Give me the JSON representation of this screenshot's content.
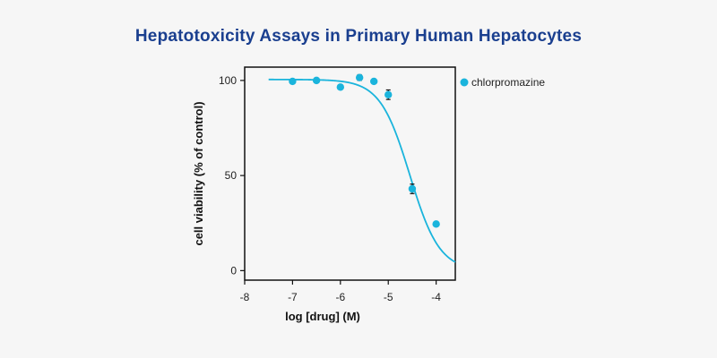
{
  "chart_data": {
    "type": "scatter",
    "title": "Hepatotoxicity Assays in Primary Human Hepatocytes",
    "xlabel": "log [drug] (M)",
    "ylabel": "cell viability (% of control)",
    "xlim": [
      -8,
      -3.6
    ],
    "ylim": [
      -5,
      107
    ],
    "x_ticks": [
      -8,
      -7,
      -6,
      -5,
      -4
    ],
    "y_ticks": [
      0,
      50,
      100
    ],
    "grid": false,
    "legend_position": "right",
    "series": [
      {
        "name": "chlorpromazine",
        "color": "#1ab4dc",
        "points": [
          {
            "x": -7.0,
            "y": 99.5
          },
          {
            "x": -6.5,
            "y": 100.0
          },
          {
            "x": -6.0,
            "y": 96.5
          },
          {
            "x": -5.6,
            "y": 101.5,
            "err": 1.5
          },
          {
            "x": -5.3,
            "y": 99.5
          },
          {
            "x": -5.0,
            "y": 92.5,
            "err": 2.5
          },
          {
            "x": -4.5,
            "y": 43.0,
            "err": 2.5
          },
          {
            "x": -4.0,
            "y": 24.5
          }
        ],
        "fit": {
          "top": 100.5,
          "bottom": 0,
          "log_ic50": -4.55,
          "hill": 1.4
        }
      }
    ]
  }
}
